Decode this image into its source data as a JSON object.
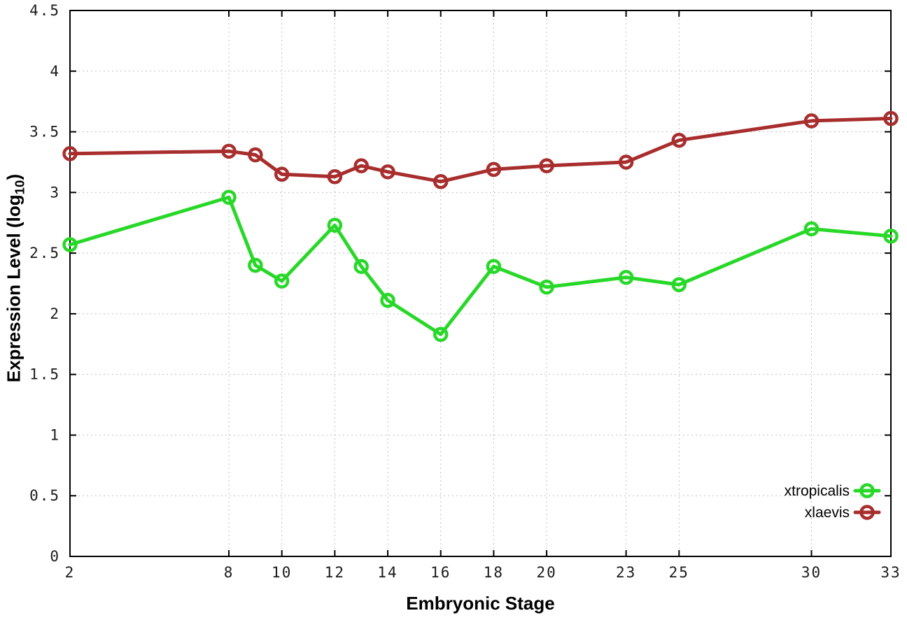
{
  "chart_data": {
    "type": "line",
    "title": "",
    "xlabel": "Embryonic Stage",
    "ylabel_prefix": "Expression Level (log",
    "ylabel_sub": "10",
    "ylabel_suffix": ")",
    "xlim": [
      2,
      33
    ],
    "ylim": [
      0,
      4.5
    ],
    "xticks": [
      2,
      8,
      10,
      12,
      14,
      16,
      18,
      20,
      23,
      25,
      30,
      33
    ],
    "yticks": [
      0,
      0.5,
      1,
      1.5,
      2,
      2.5,
      3,
      3.5,
      4,
      4.5
    ],
    "ytick_labels": [
      "0",
      "0.5",
      "1",
      "1.5",
      "2",
      "2.5",
      "3",
      "3.5",
      "4",
      "4.5"
    ],
    "grid": true,
    "legend_position": "bottom-right",
    "marker": "open-circle",
    "x": [
      2,
      8,
      9,
      10,
      12,
      13,
      14,
      16,
      18,
      20,
      23,
      25,
      30,
      33
    ],
    "series": [
      {
        "name": "xtropicalis",
        "color": "#28d828",
        "values": [
          2.57,
          2.96,
          2.4,
          2.27,
          2.73,
          2.39,
          2.11,
          1.83,
          2.39,
          2.22,
          2.3,
          2.24,
          2.7,
          2.64
        ]
      },
      {
        "name": "xlaevis",
        "color": "#a82e2e",
        "values": [
          3.32,
          3.34,
          3.31,
          3.15,
          3.13,
          3.22,
          3.17,
          3.09,
          3.19,
          3.22,
          3.25,
          3.43,
          3.59,
          3.61
        ]
      }
    ],
    "colors": {
      "border": "#000000",
      "grid": "#bfbfbf",
      "tick_label": "#1a1a1a",
      "legend_text": "#000000"
    }
  }
}
